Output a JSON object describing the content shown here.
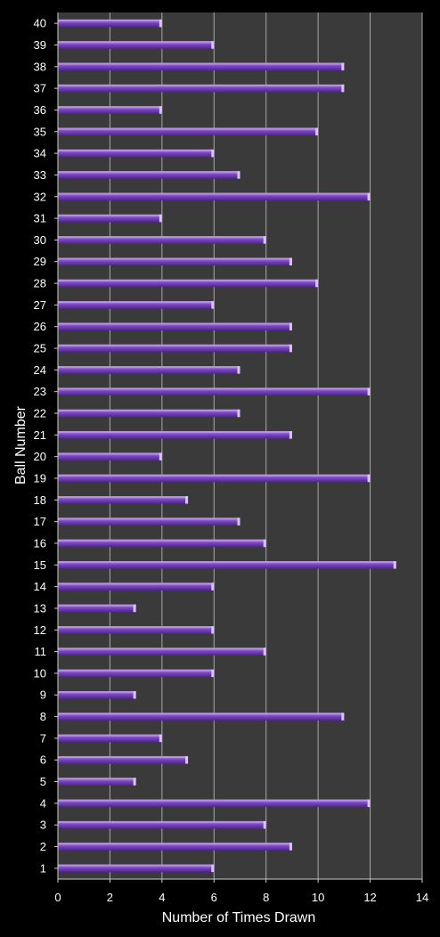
{
  "chart_data": {
    "type": "bar",
    "orientation": "horizontal",
    "title": "",
    "xlabel": "Number of Times Drawn",
    "ylabel": "Ball Number",
    "xlim": [
      0,
      14
    ],
    "xticks": [
      "0",
      "2",
      "4",
      "6",
      "8",
      "10",
      "12",
      "14"
    ],
    "categories": [
      "1",
      "2",
      "3",
      "4",
      "5",
      "6",
      "7",
      "8",
      "9",
      "10",
      "11",
      "12",
      "13",
      "14",
      "15",
      "16",
      "17",
      "18",
      "19",
      "20",
      "21",
      "22",
      "23",
      "24",
      "25",
      "26",
      "27",
      "28",
      "29",
      "30",
      "31",
      "32",
      "33",
      "34",
      "35",
      "36",
      "37",
      "38",
      "39",
      "40"
    ],
    "values": [
      6,
      9,
      8,
      12,
      3,
      5,
      4,
      11,
      3,
      6,
      8,
      6,
      3,
      6,
      13,
      8,
      7,
      5,
      12,
      4,
      9,
      7,
      12,
      7,
      9,
      9,
      6,
      10,
      9,
      8,
      4,
      12,
      7,
      6,
      10,
      4,
      11,
      11,
      6,
      4
    ],
    "grid": "vertical",
    "legend": "none",
    "colors": {
      "background": "#000000",
      "plot_area": "#3a3a3a",
      "gridline": "#a8a8a8",
      "bar_top": "#b992e3",
      "bar_mid": "#7a45c2",
      "bar_bottom": "#50258d",
      "bar_cap": "#d9c4f2",
      "text": "#ffffff"
    }
  }
}
